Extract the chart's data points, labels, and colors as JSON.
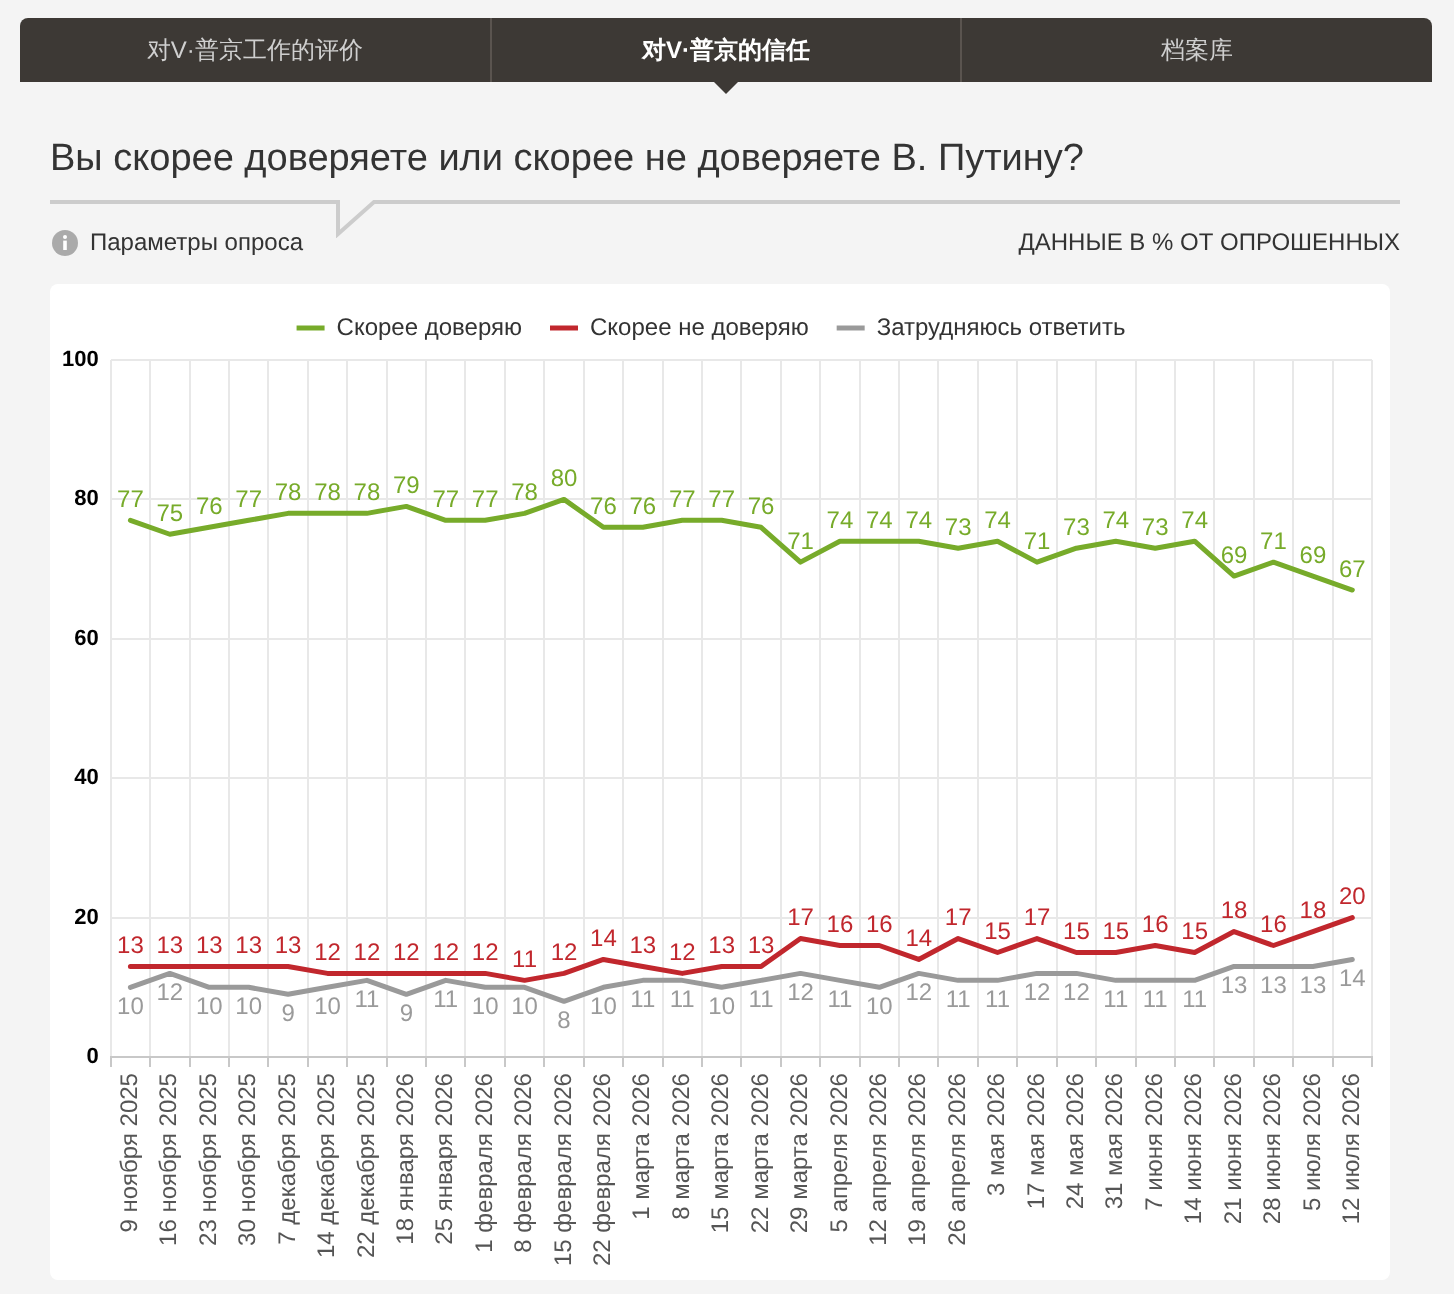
{
  "chart_data": {
    "type": "line",
    "title": "Вы скорее доверяете или скорее не доверяете В. Путину?",
    "subtitle": "ДАННЫЕ В % ОТ ОПРОШЕННЫХ",
    "annotations": [
      "对V·普京工作的评价",
      "对V·普京的信任",
      "档案库",
      "Параметры опроса"
    ],
    "categories": [
      "9 ноября 2025",
      "16 ноября 2025",
      "23 ноября 2025",
      "30 ноября 2025",
      "7 декабря 2025",
      "14 декабря 2025",
      "22 декабря 2025",
      "18 января 2026",
      "25 января 2026",
      "1 февраля 2026",
      "8 февраля 2026",
      "15 февраля 2026",
      "22 февраля 2026",
      "1 марта 2026",
      "8 марта 2026",
      "15 марта 2026",
      "22 марта 2026",
      "29 марта 2026",
      "5 апреля 2026",
      "12 апреля 2026",
      "19 апреля 2026",
      "26 апреля 2026",
      "3 мая 2026",
      "17 мая 2026",
      "24 мая 2026",
      "31 мая 2026",
      "7 июня 2026",
      "14 июня 2026",
      "21 июня 2026",
      "28 июня 2026",
      "5 июля 2026",
      "12 июля 2026"
    ],
    "series": [
      {
        "name": "Скорее доверяю",
        "color": "#77ab2a",
        "values": [
          77,
          75,
          76,
          77,
          78,
          78,
          78,
          79,
          77,
          77,
          78,
          80,
          76,
          76,
          77,
          77,
          76,
          71,
          74,
          74,
          74,
          73,
          74,
          71,
          73,
          74,
          73,
          74,
          69,
          71,
          69,
          67
        ]
      },
      {
        "name": "Скорее не доверяю",
        "color": "#c1272d",
        "values": [
          13,
          13,
          13,
          13,
          13,
          12,
          12,
          12,
          12,
          12,
          11,
          12,
          14,
          13,
          12,
          13,
          13,
          17,
          16,
          16,
          14,
          17,
          15,
          17,
          15,
          15,
          16,
          15,
          18,
          16,
          18,
          20
        ]
      },
      {
        "name": "Затрудняюсь ответить",
        "color": "#9a9a9a",
        "values": [
          10,
          12,
          10,
          10,
          9,
          10,
          11,
          9,
          11,
          10,
          10,
          8,
          10,
          11,
          11,
          10,
          11,
          12,
          11,
          10,
          12,
          11,
          11,
          12,
          12,
          11,
          11,
          11,
          13,
          13,
          13,
          14
        ]
      }
    ],
    "ylim": [
      0,
      100
    ],
    "yticks": [
      0,
      20,
      40,
      60,
      80,
      100
    ],
    "grid": true,
    "legend": "top",
    "marker": "none",
    "line_style": "solid",
    "data_labels": true
  }
}
